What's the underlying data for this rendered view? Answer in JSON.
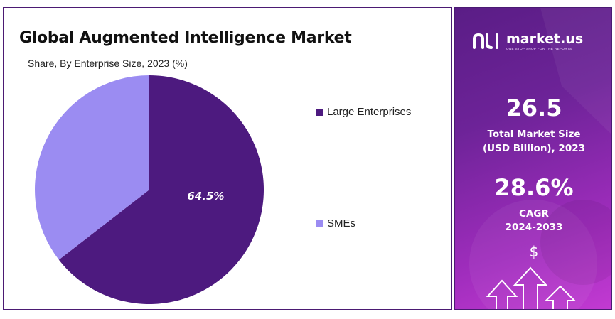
{
  "header": {
    "title": "Global Augmented Intelligence Market",
    "subtitle": "Share, By Enterprise Size, 2023 (%)"
  },
  "chart_data": {
    "type": "pie",
    "title": "Global Augmented Intelligence Market",
    "subtitle": "Share, By Enterprise Size, 2023 (%)",
    "categories": [
      "Large Enterprises",
      "SMEs"
    ],
    "values": [
      64.5,
      35.5
    ],
    "colors": [
      "#4d1a7f",
      "#9b8cf2"
    ],
    "data_labels": [
      "64.5%",
      ""
    ],
    "legend_position": "right"
  },
  "legend": {
    "items": [
      {
        "label": "Large Enterprises",
        "color": "#4d1a7f"
      },
      {
        "label": "SMEs",
        "color": "#9b8cf2"
      }
    ]
  },
  "sidebar": {
    "brand_name": "market.us",
    "brand_tagline": "ONE STOP SHOP FOR THE REPORTS",
    "market_size_value": "26.5",
    "market_size_label_line1": "Total Market Size",
    "market_size_label_line2": "(USD Billion), 2023",
    "cagr_value": "28.6%",
    "cagr_label_line1": "CAGR",
    "cagr_label_line2": "2024-2033",
    "dollar_symbol": "$",
    "icons": [
      "market-us-logo-icon",
      "dollar-icon",
      "up-arrow-icon"
    ],
    "colors": {
      "panel_dark": "#5a1d86",
      "panel_light": "#c23ad2"
    }
  }
}
